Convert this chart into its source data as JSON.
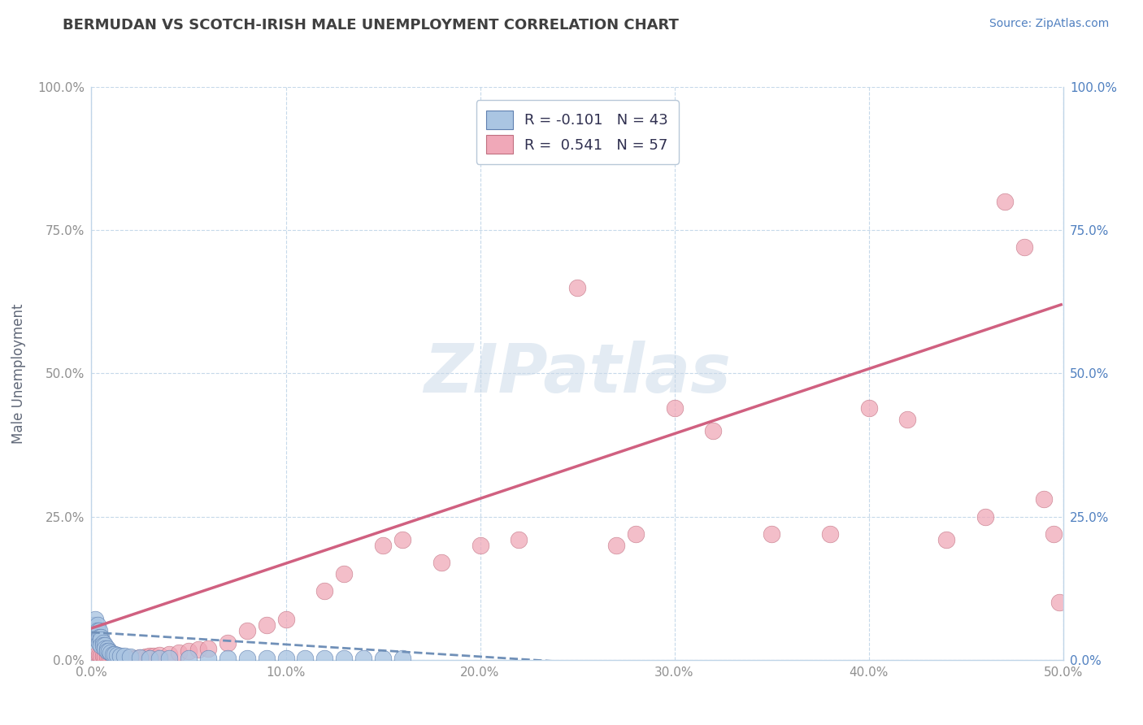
{
  "title": "BERMUDAN VS SCOTCH-IRISH MALE UNEMPLOYMENT CORRELATION CHART",
  "source_text": "Source: ZipAtlas.com",
  "ylabel": "Male Unemployment",
  "xlim": [
    0.0,
    0.5
  ],
  "ylim": [
    0.0,
    1.0
  ],
  "xticks": [
    0.0,
    0.1,
    0.2,
    0.3,
    0.4,
    0.5
  ],
  "yticks": [
    0.0,
    0.25,
    0.5,
    0.75,
    1.0
  ],
  "xticklabels": [
    "0.0%",
    "10.0%",
    "20.0%",
    "30.0%",
    "40.0%",
    "50.0%"
  ],
  "yticklabels_left": [
    "0.0%",
    "25.0%",
    "50.0%",
    "75.0%",
    "100.0%"
  ],
  "yticklabels_right": [
    "0.0%",
    "25.0%",
    "50.0%",
    "75.0%",
    "100.0%"
  ],
  "watermark": "ZIPatlas",
  "legend_line1": "R = -0.101   N = 43",
  "legend_line2": "R =  0.541   N = 57",
  "bermudan_color": "#aac5e2",
  "bermudan_edge": "#6080b0",
  "scotchirish_color": "#f0a8b8",
  "scotchirish_edge": "#c07080",
  "trendline_bermudan_color": "#7090b8",
  "trendline_scotchirish_color": "#d06080",
  "background_color": "#ffffff",
  "grid_color": "#c0d5e8",
  "title_color": "#404040",
  "axis_label_color": "#606878",
  "tick_label_color_left": "#909090",
  "tick_label_color_right": "#5080c0",
  "watermark_color": "#c8d8e8",
  "scotchirish_x": [
    0.003,
    0.004,
    0.005,
    0.006,
    0.007,
    0.008,
    0.009,
    0.01,
    0.011,
    0.012,
    0.013,
    0.014,
    0.015,
    0.016,
    0.017,
    0.018,
    0.019,
    0.02,
    0.022,
    0.023,
    0.025,
    0.028,
    0.03,
    0.032,
    0.035,
    0.04,
    0.045,
    0.05,
    0.055,
    0.06,
    0.07,
    0.08,
    0.09,
    0.1,
    0.12,
    0.13,
    0.15,
    0.16,
    0.18,
    0.2,
    0.22,
    0.25,
    0.27,
    0.28,
    0.3,
    0.32,
    0.35,
    0.38,
    0.4,
    0.42,
    0.44,
    0.46,
    0.47,
    0.48,
    0.49,
    0.495,
    0.498
  ],
  "scotchirish_y": [
    0.01,
    0.008,
    0.007,
    0.006,
    0.005,
    0.005,
    0.004,
    0.004,
    0.004,
    0.003,
    0.003,
    0.003,
    0.003,
    0.003,
    0.003,
    0.003,
    0.003,
    0.003,
    0.003,
    0.003,
    0.004,
    0.005,
    0.006,
    0.007,
    0.008,
    0.01,
    0.012,
    0.015,
    0.018,
    0.02,
    0.03,
    0.05,
    0.06,
    0.07,
    0.12,
    0.15,
    0.2,
    0.21,
    0.17,
    0.2,
    0.21,
    0.65,
    0.2,
    0.22,
    0.44,
    0.4,
    0.22,
    0.22,
    0.44,
    0.42,
    0.21,
    0.25,
    0.8,
    0.72,
    0.28,
    0.22,
    0.1
  ],
  "bermudan_x": [
    0.001,
    0.002,
    0.002,
    0.002,
    0.003,
    0.003,
    0.003,
    0.004,
    0.004,
    0.004,
    0.005,
    0.005,
    0.005,
    0.006,
    0.006,
    0.007,
    0.007,
    0.008,
    0.008,
    0.009,
    0.01,
    0.011,
    0.012,
    0.013,
    0.015,
    0.017,
    0.02,
    0.025,
    0.03,
    0.035,
    0.04,
    0.05,
    0.06,
    0.07,
    0.08,
    0.09,
    0.1,
    0.11,
    0.12,
    0.13,
    0.14,
    0.15,
    0.16
  ],
  "bermudan_y": [
    0.06,
    0.07,
    0.05,
    0.04,
    0.06,
    0.05,
    0.035,
    0.05,
    0.04,
    0.03,
    0.04,
    0.035,
    0.025,
    0.03,
    0.025,
    0.025,
    0.02,
    0.02,
    0.015,
    0.015,
    0.012,
    0.01,
    0.009,
    0.008,
    0.007,
    0.006,
    0.005,
    0.004,
    0.003,
    0.003,
    0.003,
    0.003,
    0.002,
    0.002,
    0.002,
    0.002,
    0.002,
    0.002,
    0.002,
    0.002,
    0.002,
    0.002,
    0.002
  ],
  "si_trendline_x0": 0.0,
  "si_trendline_y0": 0.055,
  "si_trendline_x1": 0.499,
  "si_trendline_y1": 0.62,
  "berm_trendline_x0": 0.0,
  "berm_trendline_y0": 0.048,
  "berm_trendline_x1": 0.32,
  "berm_trendline_y1": -0.02
}
